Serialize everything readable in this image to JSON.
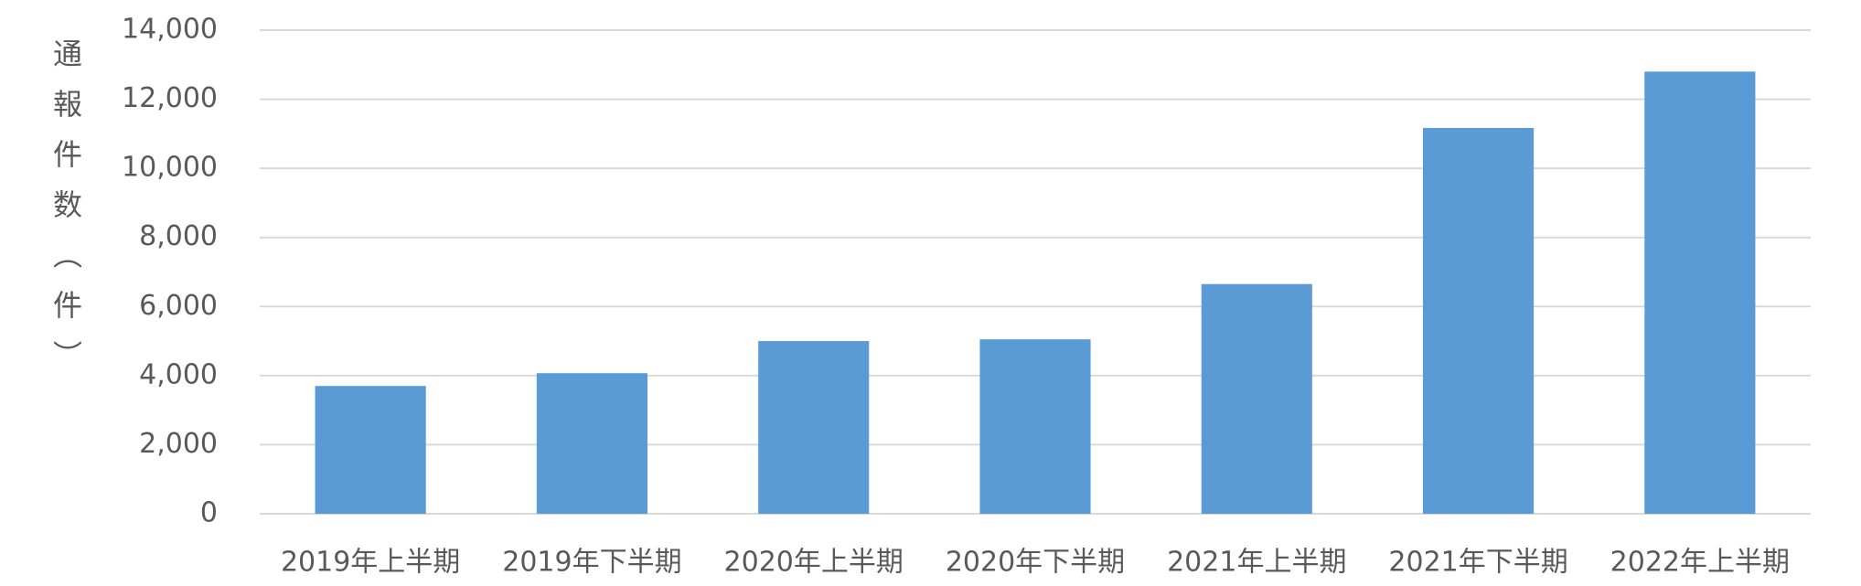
{
  "chart_data": {
    "type": "bar",
    "y_axis_label": "通報件数（件）",
    "categories": [
      "2019年上半期",
      "2019年下半期",
      "2020年上半期",
      "2020年下半期",
      "2021年上半期",
      "2021年下半期",
      "2022年上半期"
    ],
    "values": [
      3700,
      4070,
      5000,
      5050,
      6650,
      11170,
      12800
    ],
    "color": "#5b9bd5",
    "ylim": [
      0,
      14000
    ],
    "yticks": [
      0,
      {
        "value": 2000,
        "label": "2,000"
      },
      {
        "value": 4000,
        "label": "4,000"
      },
      {
        "value": 6000,
        "label": "6,000"
      },
      {
        "value": 8000,
        "label": "8,000"
      },
      {
        "value": 10000,
        "label": "10,000"
      },
      {
        "value": 12000,
        "label": "12,000"
      },
      {
        "value": 14000,
        "label": "14,000"
      }
    ],
    "grid": true
  }
}
